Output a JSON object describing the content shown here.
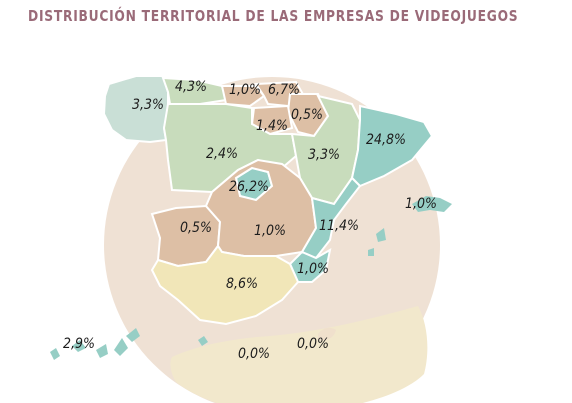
{
  "title": "DISTRIBUCIÓN TERRITORIAL DE LAS EMPRESAS DE VIDEOJUEGOS",
  "colors": {
    "circle_background": "#efe1d4",
    "galicia_low": "#c9dfd6",
    "north_green": "#c8dcbc",
    "tan": "#ddbfa5",
    "teal": "#96cec5",
    "andalucia_yellow": "#f1e6b8",
    "africa_sand": "#f2e8cc"
  },
  "regions": [
    {
      "name": "Galicia",
      "value": "3,3%"
    },
    {
      "name": "Asturias",
      "value": "4,3%"
    },
    {
      "name": "Cantabria",
      "value": "1,0%"
    },
    {
      "name": "País Vasco",
      "value": "6,7%"
    },
    {
      "name": "Navarra",
      "value": "0,5%"
    },
    {
      "name": "La Rioja",
      "value": "1,4%"
    },
    {
      "name": "Castilla y León",
      "value": "2,4%"
    },
    {
      "name": "Aragón",
      "value": "3,3%"
    },
    {
      "name": "Cataluña",
      "value": "24,8%"
    },
    {
      "name": "Madrid",
      "value": "26,2%"
    },
    {
      "name": "Extremadura",
      "value": "0,5%"
    },
    {
      "name": "Castilla-La Mancha",
      "value": "1,0%"
    },
    {
      "name": "Comunidad Valenciana",
      "value": "11,4%"
    },
    {
      "name": "Islas Baleares",
      "value": "1,0%"
    },
    {
      "name": "Región de Murcia",
      "value": "1,0%"
    },
    {
      "name": "Andalucía",
      "value": "8,6%"
    },
    {
      "name": "Canarias",
      "value": "2,9%"
    },
    {
      "name": "Ceuta",
      "value": "0,0%"
    },
    {
      "name": "Melilla",
      "value": "0,0%"
    }
  ]
}
